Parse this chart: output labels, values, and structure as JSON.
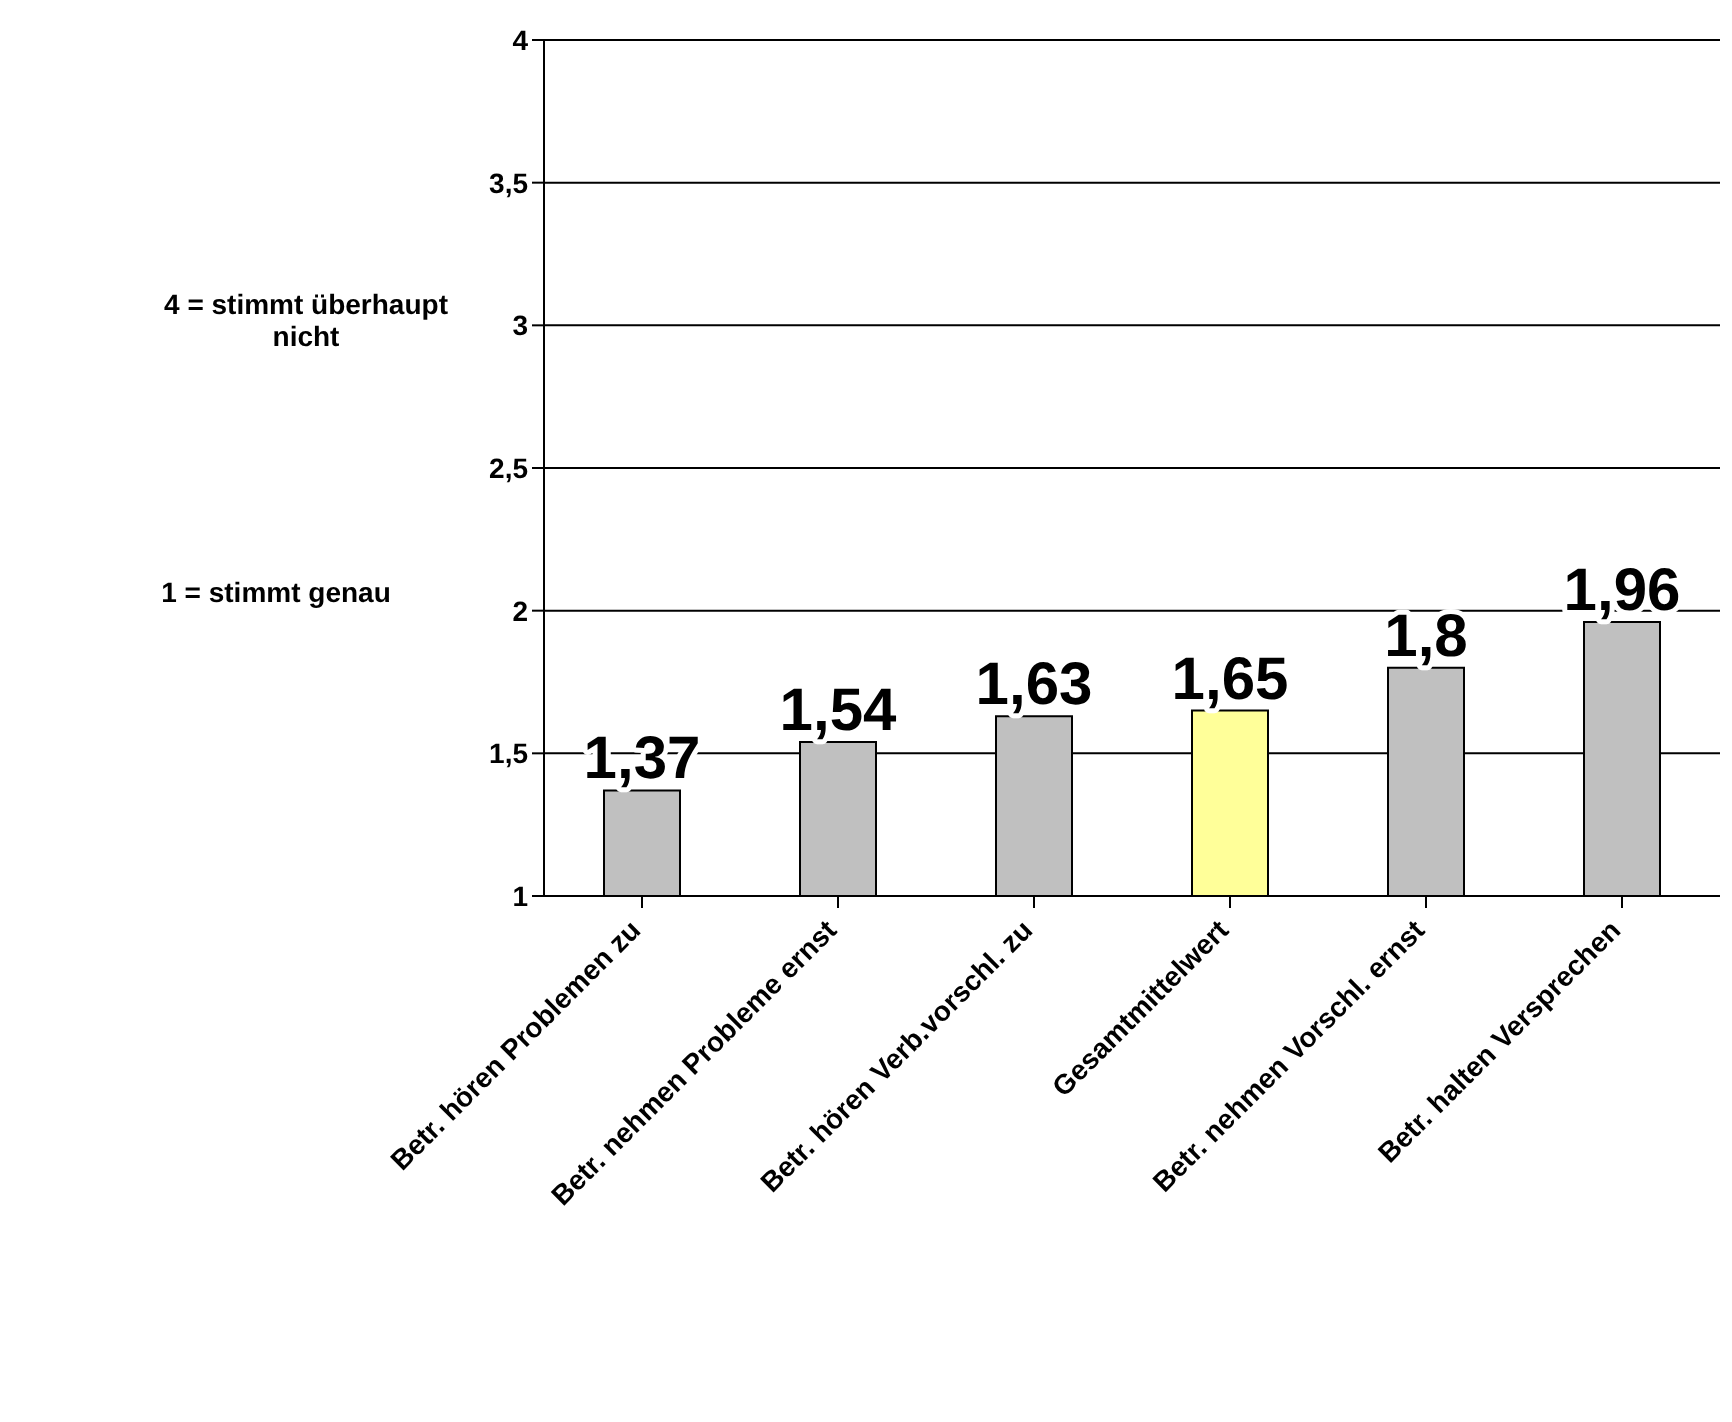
{
  "chart_data": {
    "type": "bar",
    "categories": [
      "Betr. hören Problemen zu",
      "Betr. nehmen Probleme ernst",
      "Betr. hören Verb.vorschl. zu",
      "Gesamtmittelwert",
      "Betr. nehmen Vorschl. ernst",
      "Betr. halten Versprechen"
    ],
    "values": [
      1.37,
      1.54,
      1.63,
      1.65,
      1.8,
      1.96
    ],
    "colors": [
      "#c0c0c0",
      "#c0c0c0",
      "#c0c0c0",
      "#ffff99",
      "#c0c0c0",
      "#c0c0c0"
    ],
    "value_labels": [
      "1,37",
      "1,54",
      "1,63",
      "1,65",
      "1,8",
      "1,96"
    ],
    "ylim": [
      1,
      4
    ],
    "yticks": [
      1,
      {
        "value": 1.5,
        "label": "1,5"
      },
      2,
      {
        "value": 2.5,
        "label": "2,5"
      },
      3,
      {
        "value": 3.5,
        "label": "3,5"
      },
      4
    ],
    "grid": "y",
    "annotations": [
      "4 = stimmt überhaupt nicht",
      "1 = stimmt genau"
    ]
  }
}
